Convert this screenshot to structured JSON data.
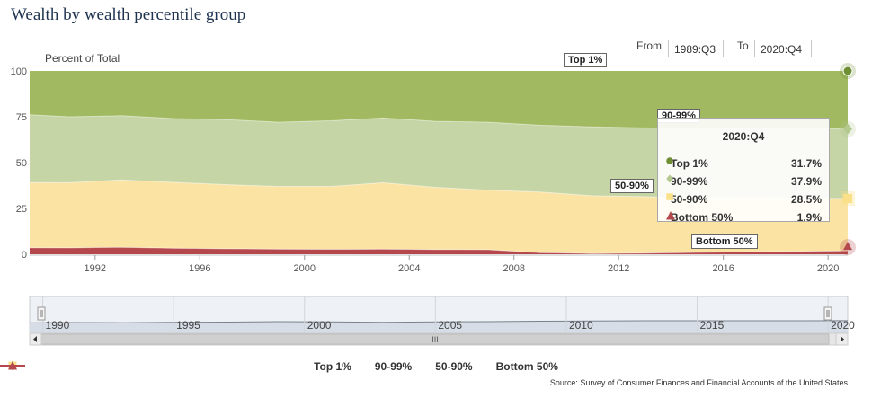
{
  "title": "Wealth by wealth percentile group",
  "range": {
    "from_label": "From",
    "from_value": "1989:Q3",
    "to_label": "To",
    "to_value": "2020:Q4"
  },
  "chart_data": {
    "type": "area",
    "stacked": true,
    "ylabel": "Percent of Total",
    "ylim": [
      0,
      100
    ],
    "yticks": [
      0,
      25,
      50,
      75,
      100
    ],
    "xlim": [
      1989.5,
      2020.75
    ],
    "xticks": [
      "1992",
      "1996",
      "2000",
      "2004",
      "2008",
      "2012",
      "2016",
      "2020"
    ],
    "x": [
      1989.5,
      1991,
      1993,
      1995,
      1997,
      1999,
      2001,
      2003,
      2005,
      2007,
      2009,
      2011,
      2013,
      2015,
      2017,
      2019,
      2020.75
    ],
    "series": [
      {
        "name": "Bottom 50%",
        "color": "#b5484d",
        "values": [
          3.6,
          3.5,
          3.8,
          3.3,
          3.0,
          2.8,
          2.7,
          2.8,
          2.6,
          2.5,
          0.9,
          0.4,
          0.6,
          1.0,
          1.4,
          1.6,
          1.9
        ]
      },
      {
        "name": "50-90%",
        "color": "#fbe3a4",
        "values": [
          35.5,
          35.5,
          36.8,
          35.9,
          35.0,
          34.2,
          34.3,
          36.2,
          33.9,
          32.5,
          33.0,
          31.5,
          30.8,
          29.7,
          29.5,
          29.2,
          28.5
        ]
      },
      {
        "name": "90-99%",
        "color": "#c5d5a5",
        "values": [
          37.0,
          36.0,
          35.0,
          34.8,
          35.5,
          35.0,
          35.8,
          35.3,
          36.0,
          37.0,
          36.5,
          37.6,
          37.5,
          38.0,
          37.8,
          38.0,
          37.9
        ]
      },
      {
        "name": "Top 1%",
        "color": "#a1b960",
        "values": [
          23.9,
          25.0,
          24.4,
          26.0,
          26.5,
          28.0,
          27.2,
          25.7,
          27.5,
          28.0,
          29.6,
          30.5,
          31.1,
          31.3,
          31.3,
          31.2,
          31.7
        ]
      }
    ],
    "navigator_ticks": [
      "1990",
      "1995",
      "2000",
      "2005",
      "2010",
      "2015",
      "2020"
    ],
    "flags": {
      "top1": "Top 1%",
      "p90_99": "90-99%",
      "p50_90": "50-90%",
      "bottom50": "Bottom 50%"
    },
    "tooltip": {
      "title": "2020:Q4",
      "rows": [
        {
          "name": "Top 1%",
          "value": "31.7%",
          "color": "#6e8f34",
          "marker": "circle"
        },
        {
          "name": "90-99%",
          "value": "37.9%",
          "color": "#b3c98f",
          "marker": "diamond"
        },
        {
          "name": "50-90%",
          "value": "28.5%",
          "color": "#fbe08a",
          "marker": "square"
        },
        {
          "name": "Bottom 50%",
          "value": "1.9%",
          "color": "#b5484d",
          "marker": "triangle"
        }
      ]
    },
    "legend": [
      {
        "name": "Top 1%",
        "color": "#6e8f34",
        "marker": "circle"
      },
      {
        "name": "90-99%",
        "color": "#b3c98f",
        "marker": "diamond"
      },
      {
        "name": "50-90%",
        "color": "#fbe08a",
        "marker": "square"
      },
      {
        "name": "Bottom 50%",
        "color": "#b5484d",
        "marker": "triangle"
      }
    ]
  },
  "source": "Source: Survey of Consumer Finances and Financial Accounts of the United States",
  "navigator": {
    "scroll_grip": "III"
  }
}
